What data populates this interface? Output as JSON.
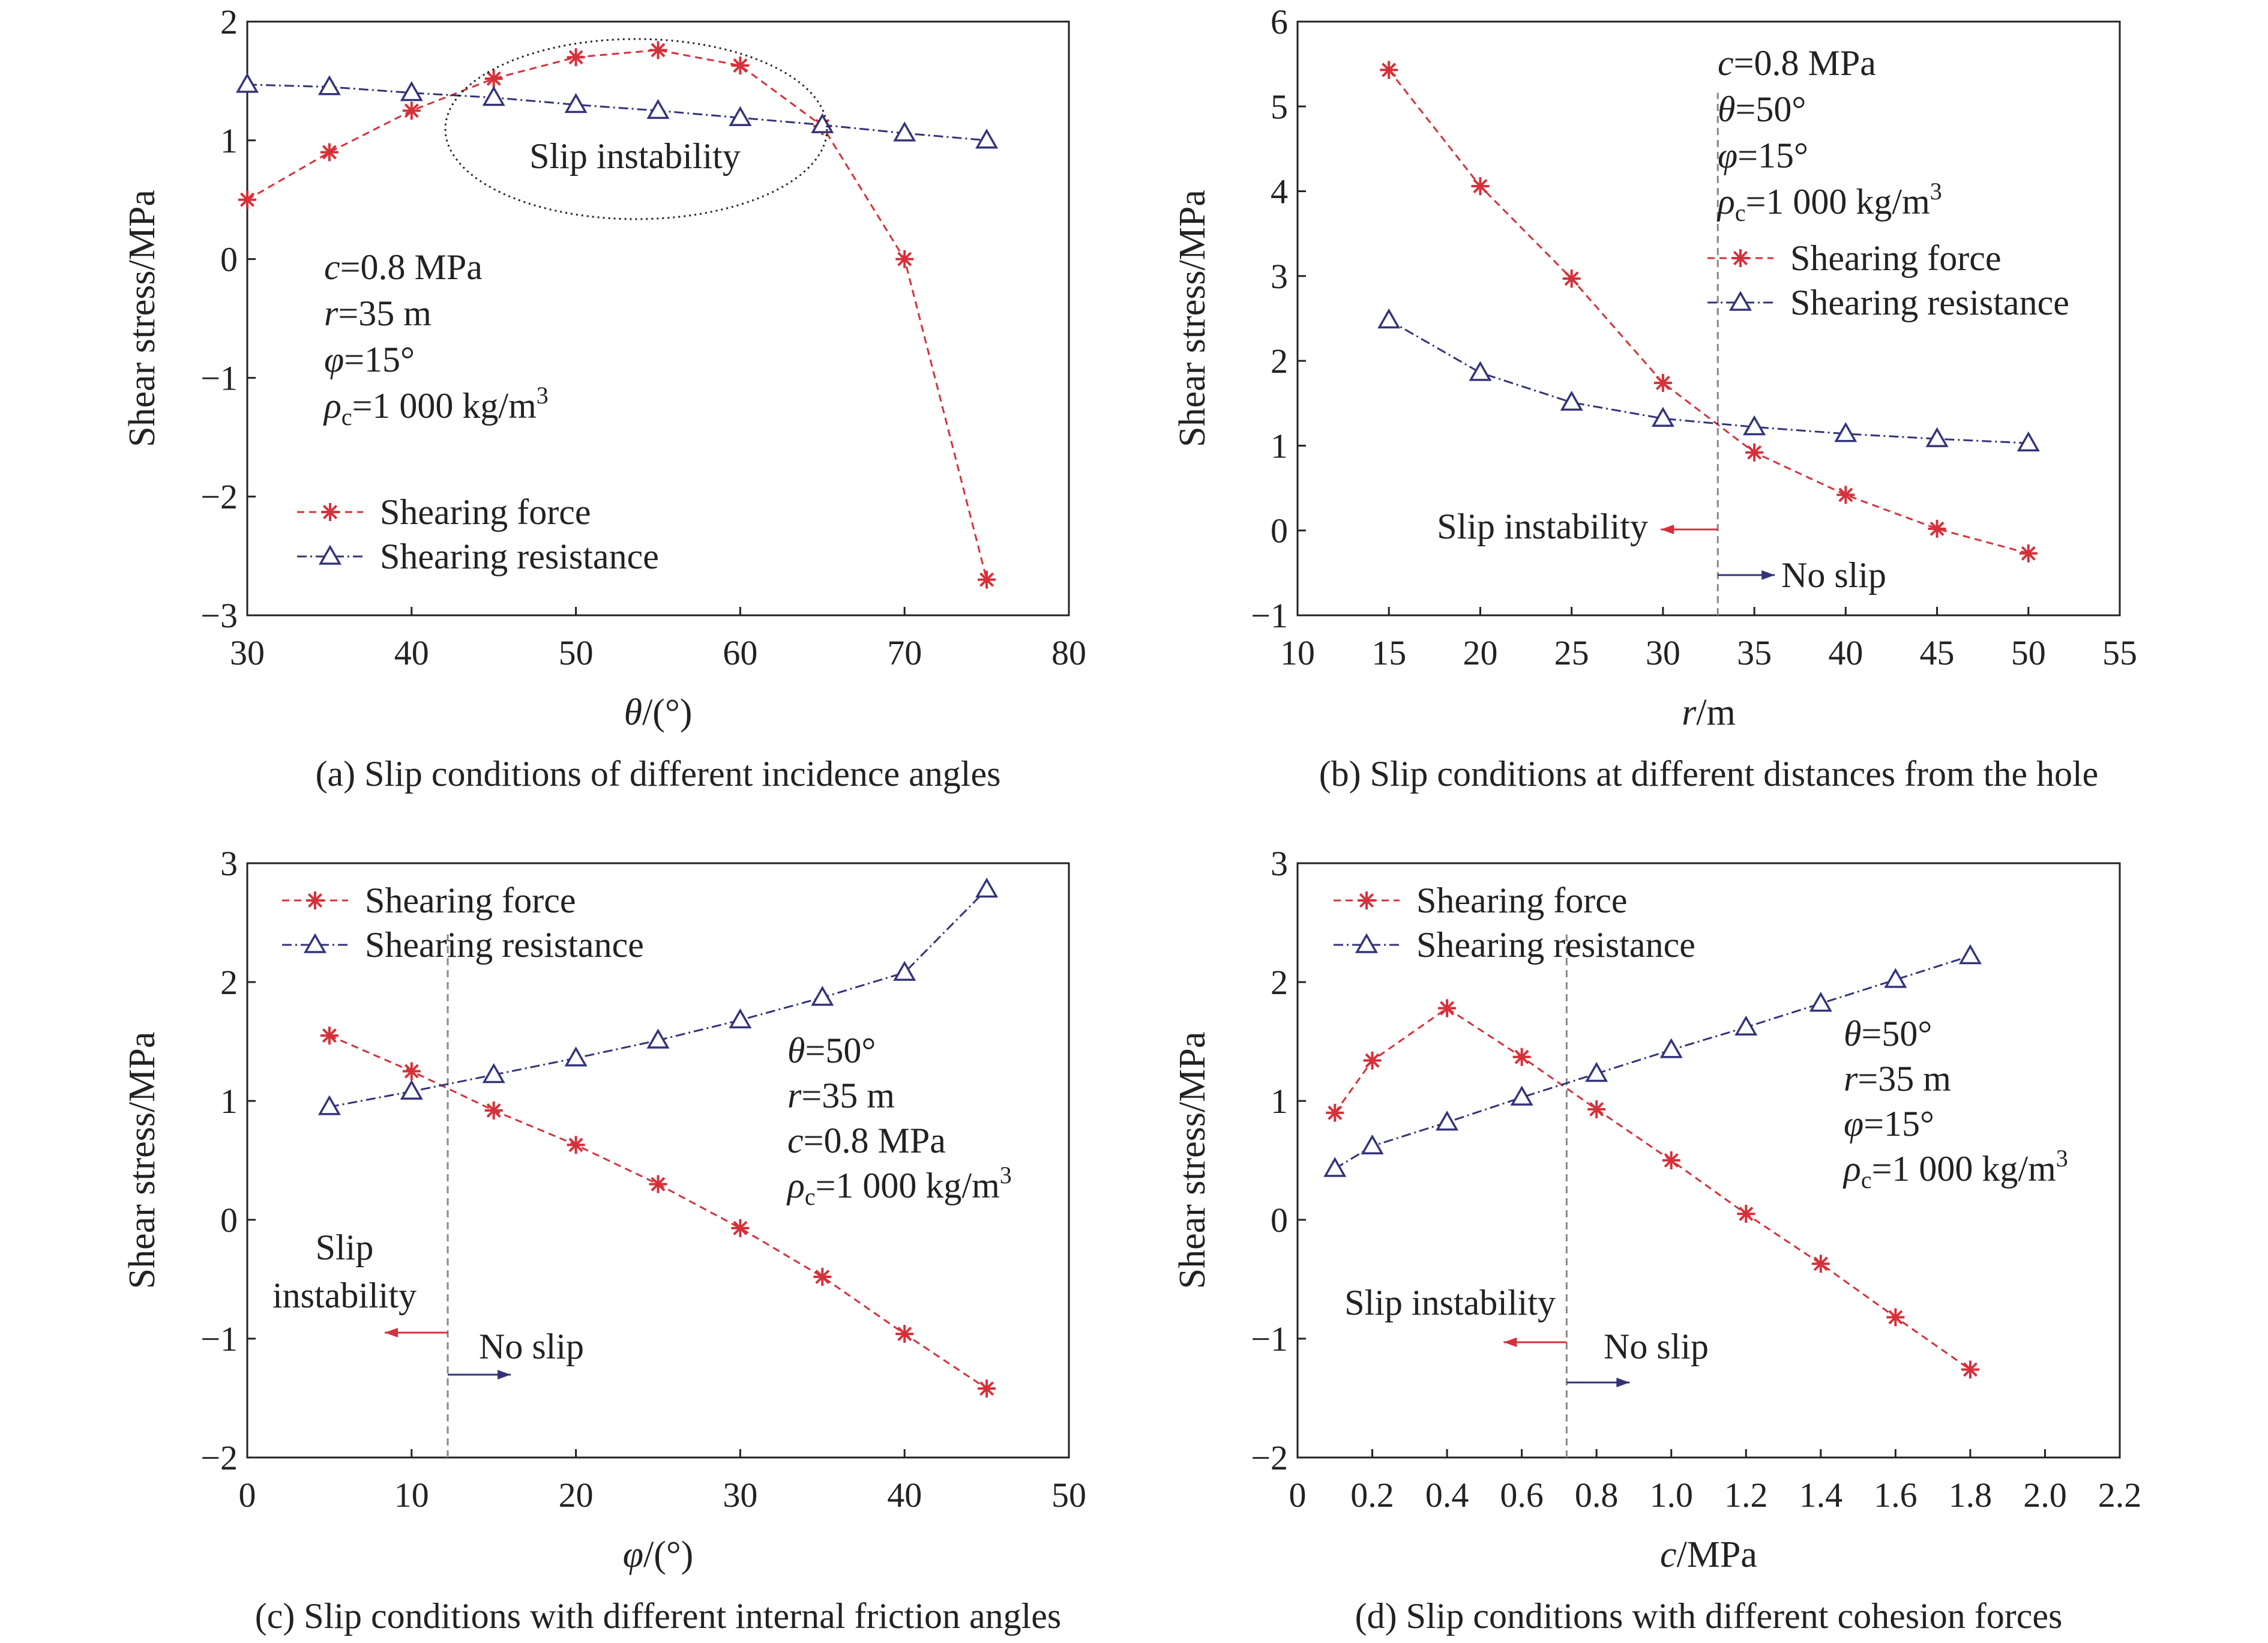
{
  "colors": {
    "force": "#d6303a",
    "resistance": "#33337a",
    "frame": "#222222",
    "guide": "#888888"
  },
  "legend": {
    "force": "Shearing force",
    "resistance": "Shearing resistance"
  },
  "chart_data": [
    {
      "id": "a",
      "type": "line",
      "caption": "(a) Slip conditions of different incidence angles",
      "xlabel": "θ/(°)",
      "ylabel": "Shear stress/MPa",
      "xlim": [
        30,
        80
      ],
      "ylim": [
        -3,
        2
      ],
      "xticks": [
        "30",
        "40",
        "50",
        "60",
        "70",
        "80"
      ],
      "yticks": [
        "−3",
        "−2",
        "−1",
        "0",
        "1",
        "2"
      ],
      "legend_position": "bottom-left",
      "params": [
        "c=0.8 MPa",
        "r=35 m",
        "φ=15°",
        "ρc=1 000 kg/m³"
      ],
      "annotations": {
        "slip_instability": "Slip instability"
      },
      "series": [
        {
          "name": "Shearing force",
          "x": [
            30,
            35,
            40,
            45,
            50,
            55,
            60,
            65,
            70,
            75
          ],
          "y": [
            0.5,
            0.9,
            1.25,
            1.52,
            1.7,
            1.76,
            1.63,
            1.12,
            0.0,
            -2.7
          ]
        },
        {
          "name": "Shearing resistance",
          "x": [
            30,
            35,
            40,
            45,
            50,
            55,
            60,
            65,
            70,
            75
          ],
          "y": [
            1.47,
            1.45,
            1.4,
            1.36,
            1.3,
            1.25,
            1.19,
            1.13,
            1.06,
            1.0
          ]
        }
      ]
    },
    {
      "id": "b",
      "type": "line",
      "caption": "(b) Slip conditions at different distances from the hole",
      "xlabel": "r/m",
      "ylabel": "Shear stress/MPa",
      "xlim": [
        10,
        55
      ],
      "ylim": [
        -1,
        6
      ],
      "xticks": [
        "10",
        "15",
        "20",
        "25",
        "30",
        "35",
        "40",
        "45",
        "50",
        "55"
      ],
      "yticks": [
        "−1",
        "0",
        "1",
        "2",
        "3",
        "4",
        "5",
        "6"
      ],
      "legend_position": "top-right",
      "params": [
        "c=0.8 MPa",
        "θ=50°",
        "φ=15°",
        "ρc=1 000 kg/m³"
      ],
      "annotations": {
        "slip_instability": "Slip instability",
        "no_slip": "No slip"
      },
      "threshold": 33,
      "series": [
        {
          "name": "Shearing force",
          "x": [
            15,
            20,
            25,
            30,
            35,
            40,
            45,
            50
          ],
          "y": [
            5.43,
            4.06,
            2.97,
            1.74,
            0.92,
            0.42,
            0.02,
            -0.27
          ]
        },
        {
          "name": "Shearing resistance",
          "x": [
            15,
            20,
            25,
            30,
            35,
            40,
            45,
            50
          ],
          "y": [
            2.48,
            1.86,
            1.51,
            1.32,
            1.22,
            1.14,
            1.08,
            1.03
          ]
        }
      ]
    },
    {
      "id": "c",
      "type": "line",
      "caption": "(c) Slip conditions with different internal friction angles",
      "xlabel": "φ/(°)",
      "ylabel": "Shear stress/MPa",
      "xlim": [
        0,
        50
      ],
      "ylim": [
        -2,
        3
      ],
      "xticks": [
        "0",
        "10",
        "20",
        "30",
        "40",
        "50"
      ],
      "yticks": [
        "−2",
        "−1",
        "0",
        "1",
        "2",
        "3"
      ],
      "legend_position": "top-left",
      "params": [
        "θ=50°",
        "r=35 m",
        "c=0.8 MPa",
        "ρc=1 000 kg/m³"
      ],
      "annotations": {
        "slip_instability": "Slip instability",
        "no_slip": "No slip"
      },
      "threshold": 12.2,
      "series": [
        {
          "name": "Shearing force",
          "x": [
            5,
            10,
            15,
            20,
            25,
            30,
            35,
            40,
            45
          ],
          "y": [
            1.55,
            1.25,
            0.92,
            0.63,
            0.3,
            -0.07,
            -0.48,
            -0.96,
            -1.42
          ]
        },
        {
          "name": "Shearing resistance",
          "x": [
            5,
            10,
            15,
            20,
            25,
            30,
            35,
            40,
            45
          ],
          "y": [
            0.95,
            1.08,
            1.22,
            1.36,
            1.51,
            1.68,
            1.87,
            2.08,
            2.78
          ]
        }
      ]
    },
    {
      "id": "d",
      "type": "line",
      "caption": "(d) Slip conditions with different cohesion forces",
      "xlabel": "c/MPa",
      "ylabel": "Shear stress/MPa",
      "xlim": [
        0,
        2.2
      ],
      "ylim": [
        -2,
        3
      ],
      "xticks": [
        "0",
        "0.2",
        "0.4",
        "0.6",
        "0.8",
        "1.0",
        "1.2",
        "1.4",
        "1.6",
        "1.8",
        "2.0",
        "2.2"
      ],
      "yticks": [
        "−2",
        "−1",
        "0",
        "1",
        "2",
        "3"
      ],
      "legend_position": "top-left",
      "params": [
        "θ=50°",
        "r=35 m",
        "φ=15°",
        "ρc=1 000 kg/m³"
      ],
      "annotations": {
        "slip_instability": "Slip instability",
        "no_slip": "No slip"
      },
      "threshold": 0.72,
      "series": [
        {
          "name": "Shearing force",
          "x": [
            0.1,
            0.2,
            0.4,
            0.6,
            0.8,
            1.0,
            1.2,
            1.4,
            1.6,
            1.8
          ],
          "y": [
            0.9,
            1.34,
            1.78,
            1.37,
            0.93,
            0.5,
            0.05,
            -0.37,
            -0.82,
            -1.26
          ]
        },
        {
          "name": "Shearing resistance",
          "x": [
            0.1,
            0.2,
            0.4,
            0.6,
            0.8,
            1.0,
            1.2,
            1.4,
            1.6,
            1.8
          ],
          "y": [
            0.43,
            0.62,
            0.82,
            1.03,
            1.23,
            1.43,
            1.62,
            1.82,
            2.02,
            2.22
          ]
        }
      ]
    }
  ]
}
